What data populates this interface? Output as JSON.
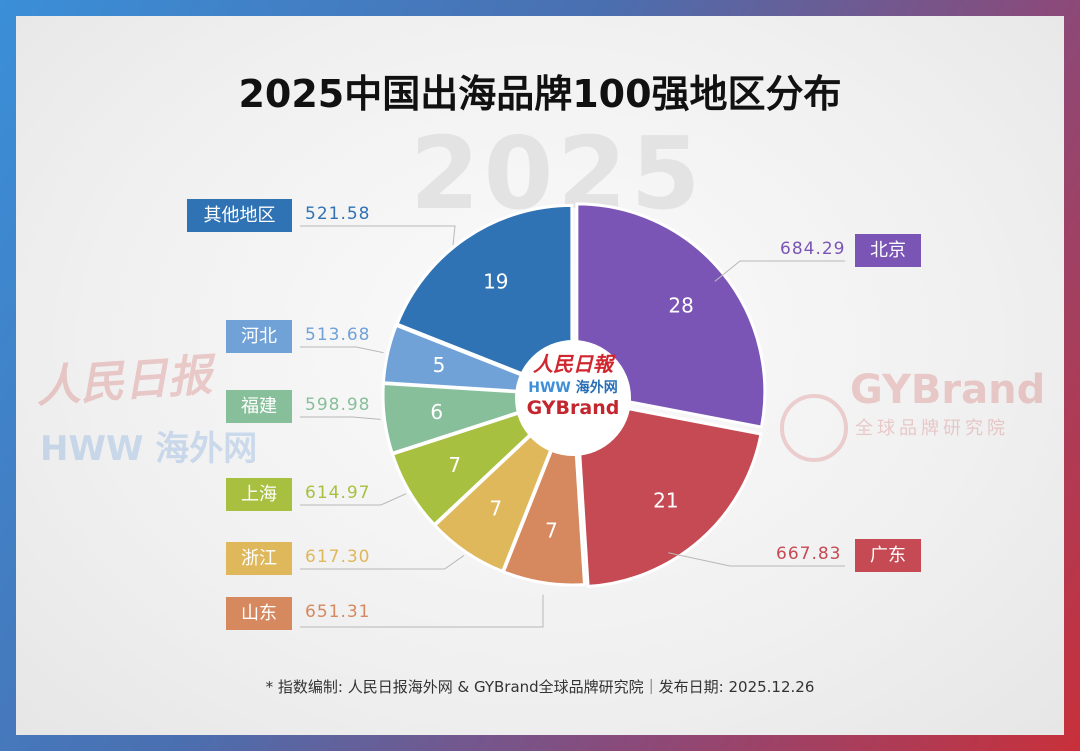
{
  "watermark_year": "2025",
  "watermarks": {
    "left_cn": "人民日报",
    "left_hww": "HWW 海外网",
    "right_brand": "GYBrand",
    "right_sub": "全球品牌研究院"
  },
  "center_logo": {
    "paper": "人民日報",
    "hww": "HWW",
    "hww_cn": "海外网",
    "brand": "GYBrand"
  },
  "footer": "* 指数编制: 人民日报海外网 & GYBrand全球品牌研究院｜发布日期: 2025.12.26",
  "chart_data": {
    "type": "pie",
    "title": "2025中国出海品牌100强地区分布",
    "slices": [
      {
        "label": "北京",
        "count": 28,
        "index": "684.29",
        "color": "#7b55b5"
      },
      {
        "label": "广东",
        "count": 21,
        "index": "667.83",
        "color": "#c54a53"
      },
      {
        "label": "山东",
        "count": 7,
        "index": "651.31",
        "color": "#d6885f"
      },
      {
        "label": "浙江",
        "count": 7,
        "index": "617.30",
        "color": "#dfb85b"
      },
      {
        "label": "上海",
        "count": 7,
        "index": "614.97",
        "color": "#a8c040"
      },
      {
        "label": "福建",
        "count": 6,
        "index": "598.98",
        "color": "#88bf9b"
      },
      {
        "label": "河北",
        "count": 5,
        "index": "513.68",
        "color": "#70a2d8"
      },
      {
        "label": "其他地区",
        "count": 19,
        "index": "521.58",
        "color": "#2f73b4"
      }
    ]
  }
}
